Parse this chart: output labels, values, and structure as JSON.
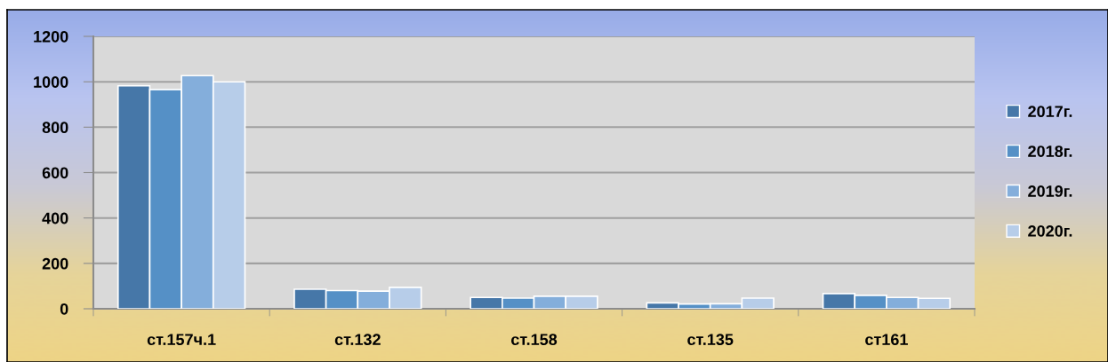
{
  "chart_data": {
    "type": "bar",
    "categories": [
      "ст.157ч.1",
      "ст.132",
      "ст.158",
      "ст.135",
      "ст161"
    ],
    "series": [
      {
        "name": "2017г.",
        "color": "#4677a8",
        "values": [
          982,
          86,
          50,
          26,
          67
        ]
      },
      {
        "name": "2018г.",
        "color": "#5590c6",
        "values": [
          966,
          80,
          47,
          21,
          59
        ]
      },
      {
        "name": "2019г.",
        "color": "#84aedb",
        "values": [
          1027,
          78,
          55,
          22,
          50
        ]
      },
      {
        "name": "2020г.",
        "color": "#b7cde9",
        "values": [
          1000,
          94,
          55,
          47,
          46
        ]
      }
    ],
    "ylim": [
      0,
      1200
    ],
    "yticks": [
      0,
      200,
      400,
      600,
      800,
      1000,
      1200
    ],
    "grid": "y",
    "legend": "right"
  }
}
